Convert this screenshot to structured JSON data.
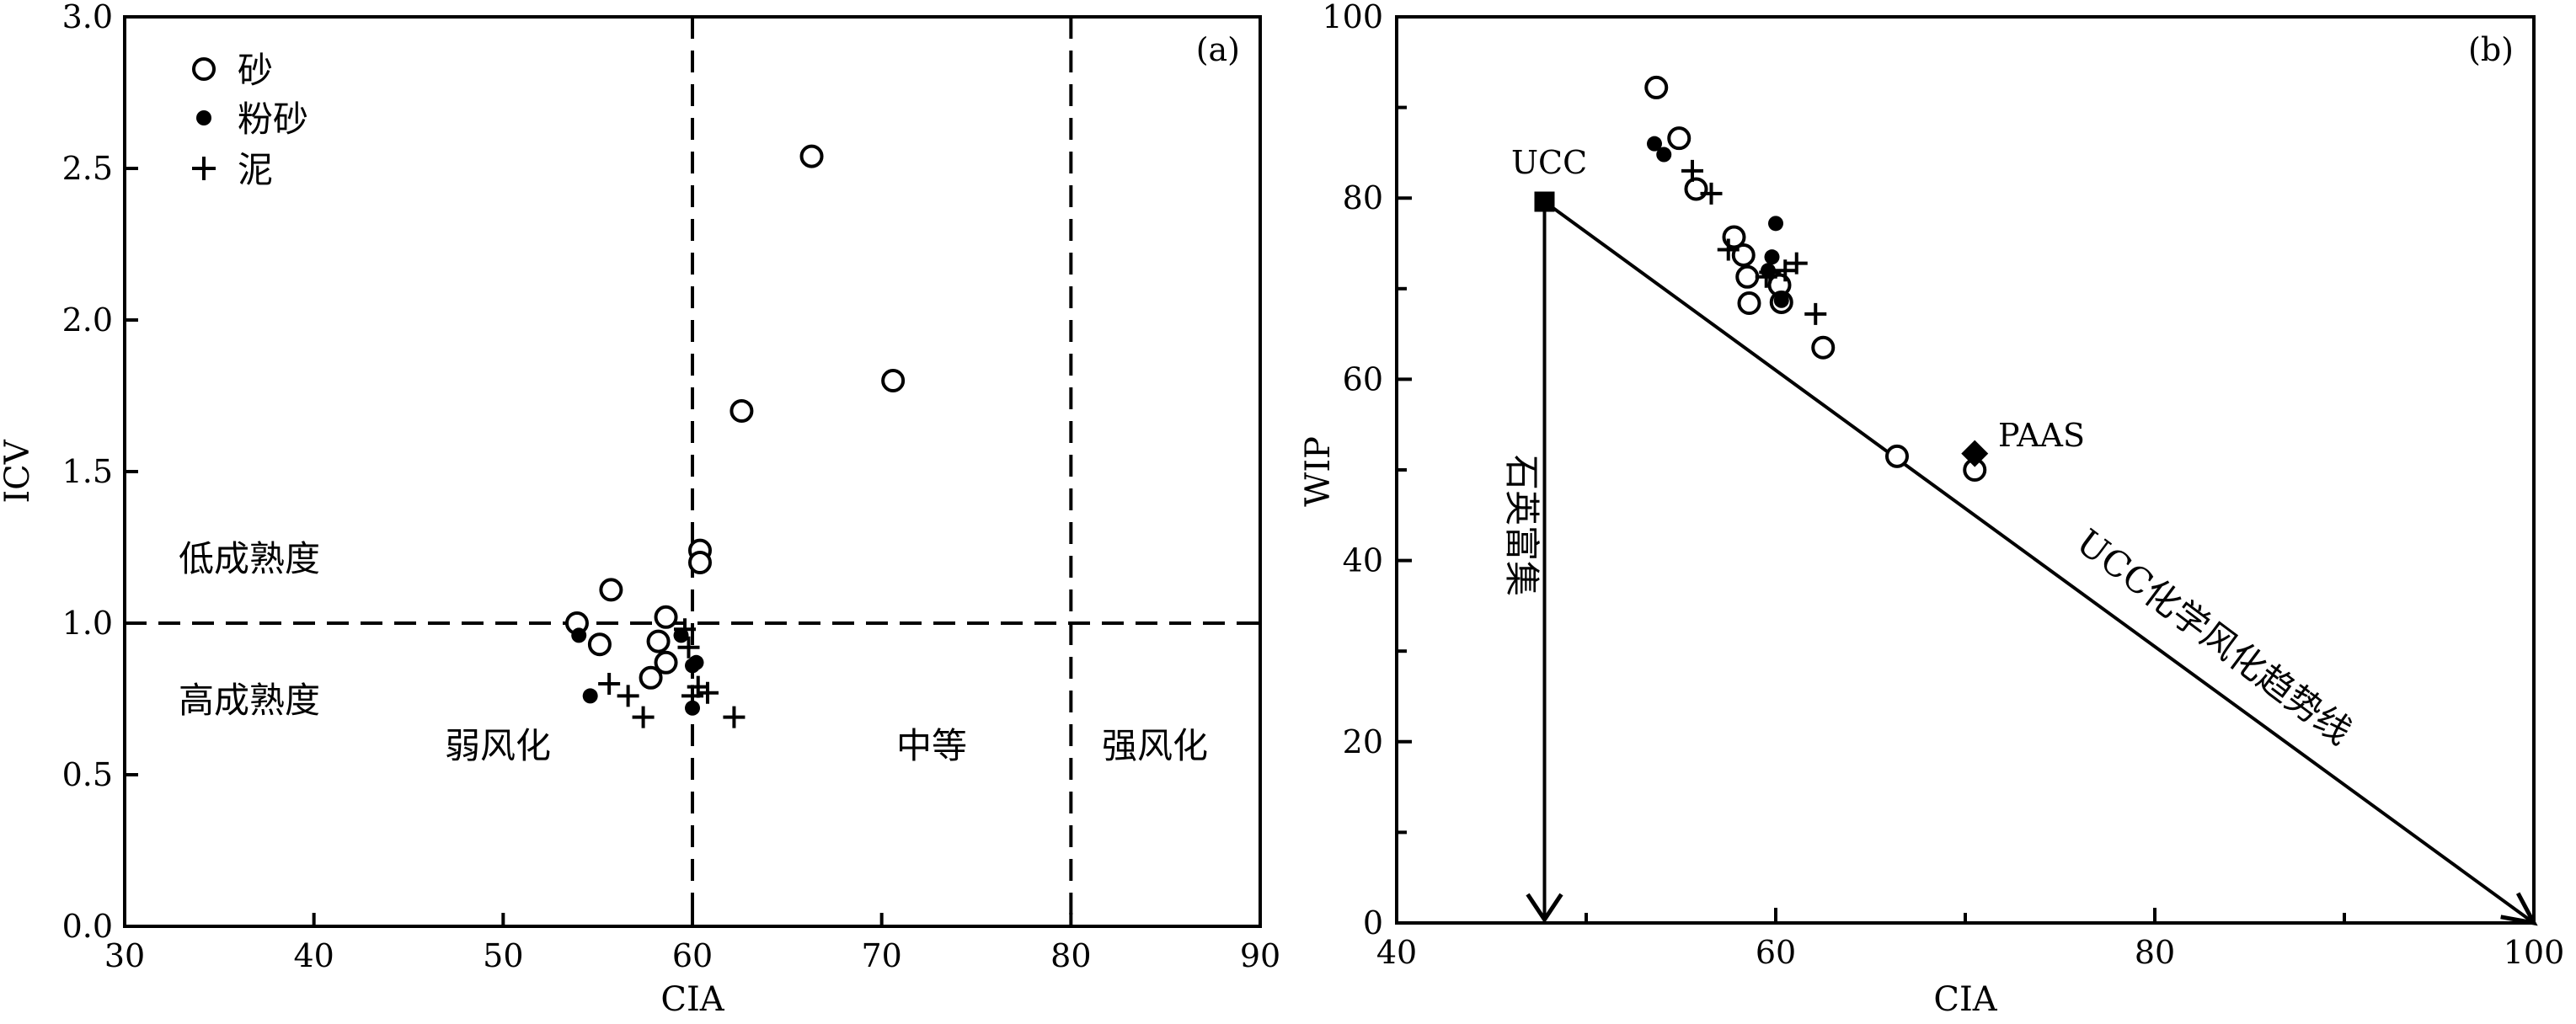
{
  "chart_data": [
    {
      "id": "a",
      "type": "scatter",
      "panel_label": "(a)",
      "xlabel": "CIA",
      "ylabel": "ICV",
      "xlim": [
        30,
        90
      ],
      "ylim": [
        0,
        3.0
      ],
      "xticks": [
        "30",
        "40",
        "50",
        "60",
        "70",
        "80",
        "90"
      ],
      "yticks": [
        "0.0",
        "0.5",
        "1.0",
        "1.5",
        "2.0",
        "2.5",
        "3.0"
      ],
      "xtick_values": [
        30,
        40,
        50,
        60,
        70,
        80,
        90
      ],
      "ytick_values": [
        0,
        0.5,
        1.0,
        1.5,
        2.0,
        2.5,
        3.0
      ],
      "grid": false,
      "legend_position": "top-left",
      "series": [
        {
          "name": "砂",
          "marker": "open-circle",
          "points": [
            [
              66.3,
              2.54
            ],
            [
              70.6,
              1.8
            ],
            [
              62.6,
              1.7
            ],
            [
              60.4,
              1.24
            ],
            [
              60.4,
              1.2
            ],
            [
              55.7,
              1.11
            ],
            [
              53.9,
              1.0
            ],
            [
              55.1,
              0.93
            ],
            [
              58.6,
              1.02
            ],
            [
              58.2,
              0.94
            ],
            [
              58.6,
              0.87
            ],
            [
              57.8,
              0.82
            ]
          ]
        },
        {
          "name": "粉砂",
          "marker": "filled-dot",
          "points": [
            [
              54.0,
              0.96
            ],
            [
              59.4,
              0.96
            ],
            [
              60.0,
              0.86
            ],
            [
              60.2,
              0.87
            ],
            [
              54.6,
              0.76
            ],
            [
              60.0,
              0.72
            ]
          ]
        },
        {
          "name": "泥",
          "marker": "plus",
          "points": [
            [
              59.6,
              0.98
            ],
            [
              59.8,
              0.92
            ],
            [
              55.6,
              0.8
            ],
            [
              56.6,
              0.76
            ],
            [
              57.4,
              0.69
            ],
            [
              60.3,
              0.79
            ],
            [
              60.8,
              0.77
            ],
            [
              62.2,
              0.69
            ],
            [
              60.0,
              0.76
            ]
          ]
        }
      ],
      "reference_lines": [
        {
          "orientation": "vertical",
          "value": 60,
          "style": "dashed"
        },
        {
          "orientation": "vertical",
          "value": 80,
          "style": "dashed"
        },
        {
          "orientation": "horizontal",
          "value": 1.0,
          "style": "dashed"
        }
      ],
      "annotations": {
        "low_maturity": "低成熟度",
        "high_maturity": "高成熟度",
        "weak_weathering": "弱风化",
        "moderate_weathering": "中等",
        "strong_weathering": "强风化"
      }
    },
    {
      "id": "b",
      "type": "scatter",
      "panel_label": "(b)",
      "xlabel": "CIA",
      "ylabel": "WIP",
      "xlim": [
        40,
        100
      ],
      "ylim": [
        0,
        100
      ],
      "xticks": [
        "40",
        "60",
        "80",
        "100"
      ],
      "yticks": [
        "0",
        "20",
        "40",
        "60",
        "80",
        "100"
      ],
      "xtick_values": [
        40,
        60,
        80,
        100
      ],
      "ytick_values": [
        0,
        20,
        40,
        60,
        80,
        100
      ],
      "grid": false,
      "series": [
        {
          "name": "砂",
          "marker": "open-circle",
          "points": [
            [
              53.7,
              92.2
            ],
            [
              54.9,
              86.6
            ],
            [
              55.8,
              81.0
            ],
            [
              57.8,
              75.7
            ],
            [
              58.3,
              73.7
            ],
            [
              58.5,
              71.3
            ],
            [
              58.6,
              68.4
            ],
            [
              60.2,
              70.4
            ],
            [
              60.3,
              68.5
            ],
            [
              62.5,
              63.5
            ],
            [
              66.4,
              51.5
            ],
            [
              70.5,
              50.0
            ]
          ]
        },
        {
          "name": "粉砂",
          "marker": "filled-dot",
          "points": [
            [
              53.6,
              86.0
            ],
            [
              54.1,
              84.8
            ],
            [
              60.0,
              77.2
            ],
            [
              59.6,
              72.0
            ],
            [
              59.8,
              73.5
            ],
            [
              60.3,
              68.7
            ]
          ]
        },
        {
          "name": "泥",
          "marker": "plus",
          "points": [
            [
              55.6,
              83.0
            ],
            [
              56.6,
              80.5
            ],
            [
              57.5,
              74.3
            ],
            [
              59.5,
              71.3
            ],
            [
              59.7,
              71.8
            ],
            [
              60.5,
              72.0
            ],
            [
              61.1,
              72.8
            ],
            [
              62.1,
              67.2
            ]
          ]
        }
      ],
      "reference_points": [
        {
          "label": "UCC",
          "x": 47.8,
          "y": 79.6,
          "marker": "filled-square"
        },
        {
          "label": "PAAS",
          "x": 70.5,
          "y": 51.8,
          "marker": "filled-diamond"
        }
      ],
      "trend_line": {
        "from": [
          47.8,
          79.6
        ],
        "to": [
          100,
          0
        ],
        "label": "UCC化学风化趋势线"
      },
      "quartz_arrow": {
        "from": [
          47.8,
          79.6
        ],
        "to": [
          47.8,
          0
        ],
        "label": "石英富集"
      }
    }
  ]
}
